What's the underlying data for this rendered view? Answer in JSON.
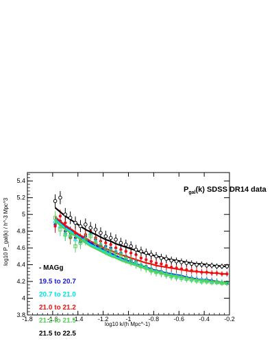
{
  "chart_data": {
    "type": "scatter",
    "title": "P_gal(k) SDSS DR14 data",
    "title_main": "P",
    "title_sub": "gal",
    "title_rest": "(k) SDSS DR14 data",
    "xlabel": "log10 k/(h Mpc^-1)",
    "ylabel": "log10 P_gal(k) / h^-3 Mpc^3",
    "xlim": [
      -1.8,
      -0.2
    ],
    "ylim": [
      3.8,
      5.5
    ],
    "x_ticks": [
      -1.8,
      -1.6,
      -1.4,
      -1.2,
      -1.0,
      -0.8,
      -0.6,
      -0.4,
      -0.2
    ],
    "x_tick_labels": [
      "-1.8",
      "-1.6",
      "-1.4",
      "-1.2",
      "-1",
      "-0.8",
      "-0.6",
      "-0.4",
      "-0.2"
    ],
    "y_ticks": [
      3.8,
      4.0,
      4.2,
      4.4,
      4.6,
      4.8,
      5.0,
      5.2,
      5.4
    ],
    "y_tick_labels": [
      "3.8",
      "4",
      "4.2",
      "4.4",
      "4.6",
      "4.8",
      "5",
      "5.2",
      "5.4"
    ],
    "grid": false,
    "legend_position": "bottom-left",
    "legend_header": "- MAGg",
    "x": [
      -1.58,
      -1.54,
      -1.5,
      -1.46,
      -1.42,
      -1.38,
      -1.34,
      -1.3,
      -1.26,
      -1.22,
      -1.18,
      -1.14,
      -1.1,
      -1.06,
      -1.02,
      -0.98,
      -0.94,
      -0.9,
      -0.86,
      -0.82,
      -0.78,
      -0.74,
      -0.7,
      -0.66,
      -0.62,
      -0.58,
      -0.54,
      -0.5,
      -0.46,
      -0.42,
      -0.38,
      -0.34,
      -0.3,
      -0.26,
      -0.22
    ],
    "series": [
      {
        "name": "19.5 to 20.7",
        "color": "#1a1ad6",
        "marker": "circle-filled",
        "points": [
          4.88,
          4.92,
          4.8,
          4.78,
          4.72,
          4.68,
          4.74,
          4.8,
          4.7,
          4.64,
          4.62,
          4.6,
          4.56,
          4.54,
          4.5,
          4.46,
          4.44,
          4.4,
          4.38,
          4.35,
          4.33,
          4.32,
          4.3,
          4.28,
          4.27,
          4.26,
          4.25,
          4.24,
          4.23,
          4.22,
          4.22,
          4.21,
          4.2,
          4.19,
          4.18
        ],
        "fit": [
          4.96,
          4.91,
          4.86,
          4.82,
          4.78,
          4.74,
          4.7,
          4.66,
          4.63,
          4.6,
          4.57,
          4.54,
          4.51,
          4.48,
          4.46,
          4.43,
          4.41,
          4.39,
          4.37,
          4.35,
          4.33,
          4.32,
          4.3,
          4.29,
          4.28,
          4.27,
          4.25,
          4.24,
          4.23,
          4.22,
          4.22,
          4.21,
          4.2,
          4.19,
          4.18
        ]
      },
      {
        "name": "20.7 to 21.0",
        "color": "#00e5e5",
        "marker": "triangle-open",
        "points": [
          4.92,
          4.86,
          4.76,
          4.74,
          4.7,
          4.68,
          4.72,
          4.78,
          4.68,
          4.64,
          4.6,
          4.58,
          4.56,
          4.53,
          4.49,
          4.46,
          4.43,
          4.4,
          4.37,
          4.34,
          4.32,
          4.31,
          4.29,
          4.27,
          4.26,
          4.25,
          4.24,
          4.23,
          4.22,
          4.21,
          4.21,
          4.2,
          4.19,
          4.19,
          4.18
        ],
        "fit": [
          4.94,
          4.89,
          4.84,
          4.8,
          4.76,
          4.72,
          4.68,
          4.64,
          4.61,
          4.58,
          4.55,
          4.52,
          4.49,
          4.47,
          4.44,
          4.42,
          4.4,
          4.38,
          4.36,
          4.34,
          4.32,
          4.31,
          4.29,
          4.28,
          4.27,
          4.26,
          4.24,
          4.23,
          4.22,
          4.22,
          4.21,
          4.2,
          4.19,
          4.19,
          4.18
        ]
      },
      {
        "name": "21.0 to 21.2",
        "color": "#ee1111",
        "marker": "circle-filled",
        "points": [
          4.86,
          4.98,
          4.9,
          4.72,
          4.78,
          4.7,
          4.76,
          4.8,
          4.72,
          4.68,
          4.66,
          4.64,
          4.6,
          4.58,
          4.56,
          4.54,
          4.52,
          4.48,
          4.46,
          4.44,
          4.42,
          4.41,
          4.39,
          4.37,
          4.36,
          4.35,
          4.34,
          4.33,
          4.32,
          4.31,
          4.31,
          4.3,
          4.3,
          4.29,
          4.29
        ],
        "fit": [
          4.97,
          4.92,
          4.87,
          4.83,
          4.79,
          4.75,
          4.72,
          4.68,
          4.65,
          4.62,
          4.59,
          4.57,
          4.54,
          4.52,
          4.5,
          4.48,
          4.46,
          4.44,
          4.42,
          4.41,
          4.39,
          4.38,
          4.37,
          4.36,
          4.35,
          4.34,
          4.33,
          4.32,
          4.32,
          4.31,
          4.31,
          4.3,
          4.3,
          4.29,
          4.29
        ]
      },
      {
        "name": "21.2 to 21.5",
        "color": "#55d055",
        "marker": "square-open",
        "points": [
          4.96,
          4.82,
          4.76,
          4.74,
          4.62,
          4.66,
          4.7,
          4.74,
          4.66,
          4.62,
          4.58,
          4.56,
          4.53,
          4.51,
          4.47,
          4.44,
          4.41,
          4.38,
          4.36,
          4.33,
          4.31,
          4.3,
          4.28,
          4.26,
          4.25,
          4.24,
          4.23,
          4.22,
          4.21,
          4.2,
          4.2,
          4.19,
          4.19,
          4.18,
          4.18
        ],
        "fit": [
          4.92,
          4.87,
          4.82,
          4.78,
          4.74,
          4.7,
          4.66,
          4.62,
          4.59,
          4.56,
          4.53,
          4.5,
          4.48,
          4.45,
          4.43,
          4.41,
          4.39,
          4.37,
          4.35,
          4.33,
          4.31,
          4.3,
          4.28,
          4.27,
          4.26,
          4.25,
          4.24,
          4.23,
          4.22,
          4.21,
          4.2,
          4.2,
          4.19,
          4.18,
          4.18
        ]
      },
      {
        "name": "21.5 to 22.5",
        "color": "#000000",
        "marker": "circle-open",
        "points": [
          5.16,
          5.2,
          5.0,
          4.96,
          4.9,
          4.86,
          4.88,
          4.84,
          4.82,
          4.78,
          4.74,
          4.72,
          4.7,
          4.66,
          4.64,
          4.62,
          4.58,
          4.56,
          4.54,
          4.52,
          4.5,
          4.48,
          4.47,
          4.45,
          4.44,
          4.43,
          4.42,
          4.41,
          4.4,
          4.4,
          4.39,
          4.39,
          4.38,
          4.38,
          4.38
        ],
        "fit": [
          5.08,
          5.03,
          4.98,
          4.94,
          4.9,
          4.86,
          4.82,
          4.79,
          4.76,
          4.73,
          4.7,
          4.68,
          4.65,
          4.63,
          4.61,
          4.59,
          4.57,
          4.55,
          4.53,
          4.52,
          4.5,
          4.49,
          4.47,
          4.46,
          4.45,
          4.44,
          4.43,
          4.42,
          4.41,
          4.41,
          4.4,
          4.39,
          4.39,
          4.38,
          4.38
        ]
      }
    ]
  }
}
